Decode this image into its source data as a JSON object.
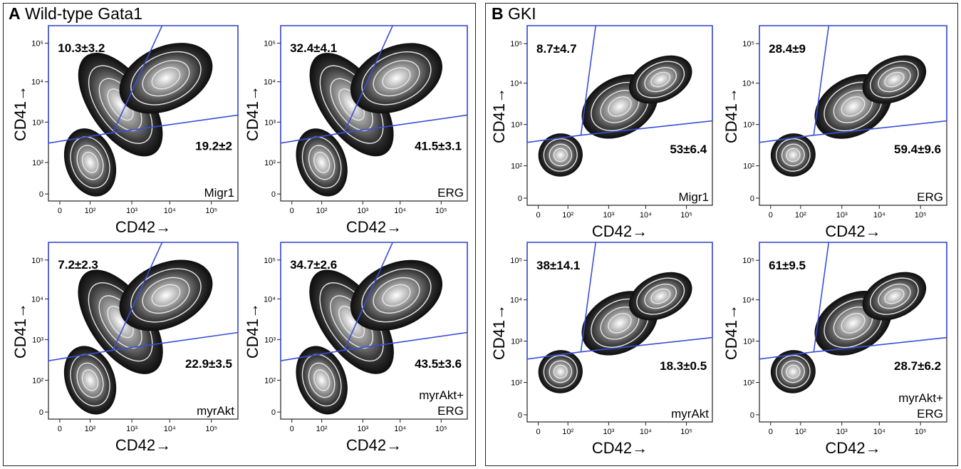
{
  "panels": [
    {
      "letter": "A",
      "title": "Wild-type Gata1"
    },
    {
      "letter": "B",
      "title": "GKI"
    }
  ],
  "colors": {
    "gate": "#3a4fd6",
    "frame": "#222222",
    "density_dark": "#111111"
  },
  "chart_data": [
    {
      "type": "contour",
      "panel": "A",
      "condition": "Migr1",
      "xlabel": "CD42→",
      "ylabel": "CD41→",
      "x_ticks": [
        "0",
        "10²",
        "10³",
        "10⁴",
        "10⁵"
      ],
      "y_ticks": [
        "0",
        "10²",
        "10³",
        "10⁴",
        "10⁵"
      ],
      "gates": {
        "upper_left": "10.3±3.2",
        "upper_right": "19.2±2"
      }
    },
    {
      "type": "contour",
      "panel": "A",
      "condition": "ERG",
      "xlabel": "CD42→",
      "ylabel": "CD41→",
      "x_ticks": [
        "0",
        "10²",
        "10³",
        "10⁴",
        "10⁵"
      ],
      "y_ticks": [
        "0",
        "10²",
        "10³",
        "10⁴",
        "10⁵"
      ],
      "gates": {
        "upper_left": "32.4±4.1",
        "upper_right": "41.5±3.1"
      }
    },
    {
      "type": "contour",
      "panel": "A",
      "condition": "myrAkt",
      "xlabel": "CD42→",
      "ylabel": "CD41→",
      "x_ticks": [
        "0",
        "10²",
        "10³",
        "10⁴",
        "10⁵"
      ],
      "y_ticks": [
        "0",
        "10²",
        "10³",
        "10⁴",
        "10⁵"
      ],
      "gates": {
        "upper_left": "7.2±2.3",
        "upper_right": "22.9±3.5"
      }
    },
    {
      "type": "contour",
      "panel": "A",
      "condition": "myrAkt+\nERG",
      "xlabel": "CD42→",
      "ylabel": "CD41→",
      "x_ticks": [
        "0",
        "10²",
        "10³",
        "10⁴",
        "10⁵"
      ],
      "y_ticks": [
        "0",
        "10²",
        "10³",
        "10⁴",
        "10⁵"
      ],
      "gates": {
        "upper_left": "34.7±2.6",
        "upper_right": "43.5±3.6"
      }
    },
    {
      "type": "contour",
      "panel": "B",
      "condition": "Migr1",
      "xlabel": "CD42→",
      "ylabel": "CD41→",
      "x_ticks": [
        "0",
        "10²",
        "10³",
        "10⁴",
        "10⁵"
      ],
      "y_ticks": [
        "0",
        "10²",
        "10³",
        "10⁴",
        "10⁵"
      ],
      "gates": {
        "upper_left": "8.7±4.7",
        "upper_right": "53±6.4"
      }
    },
    {
      "type": "contour",
      "panel": "B",
      "condition": "ERG",
      "xlabel": "CD42→",
      "ylabel": "CD41→",
      "x_ticks": [
        "0",
        "10²",
        "10³",
        "10⁴",
        "10⁵"
      ],
      "y_ticks": [
        "0",
        "10²",
        "10³",
        "10⁴",
        "10⁵"
      ],
      "gates": {
        "upper_left": "28.4±9",
        "upper_right": "59.4±9.6"
      }
    },
    {
      "type": "contour",
      "panel": "B",
      "condition": "myrAkt",
      "xlabel": "CD42→",
      "ylabel": "CD41→",
      "x_ticks": [
        "0",
        "10²",
        "10³",
        "10⁴",
        "10⁵"
      ],
      "y_ticks": [
        "0",
        "10²",
        "10³",
        "10⁴",
        "10⁵"
      ],
      "gates": {
        "upper_left": "38±14.1",
        "upper_right": "18.3±0.5"
      }
    },
    {
      "type": "contour",
      "panel": "B",
      "condition": "myrAkt+\nERG",
      "xlabel": "CD42→",
      "ylabel": "CD41→",
      "x_ticks": [
        "0",
        "10²",
        "10³",
        "10⁴",
        "10⁵"
      ],
      "y_ticks": [
        "0",
        "10²",
        "10³",
        "10⁴",
        "10⁵"
      ],
      "gates": {
        "upper_left": "61±9.5",
        "upper_right": "28.7±6.2"
      }
    }
  ]
}
